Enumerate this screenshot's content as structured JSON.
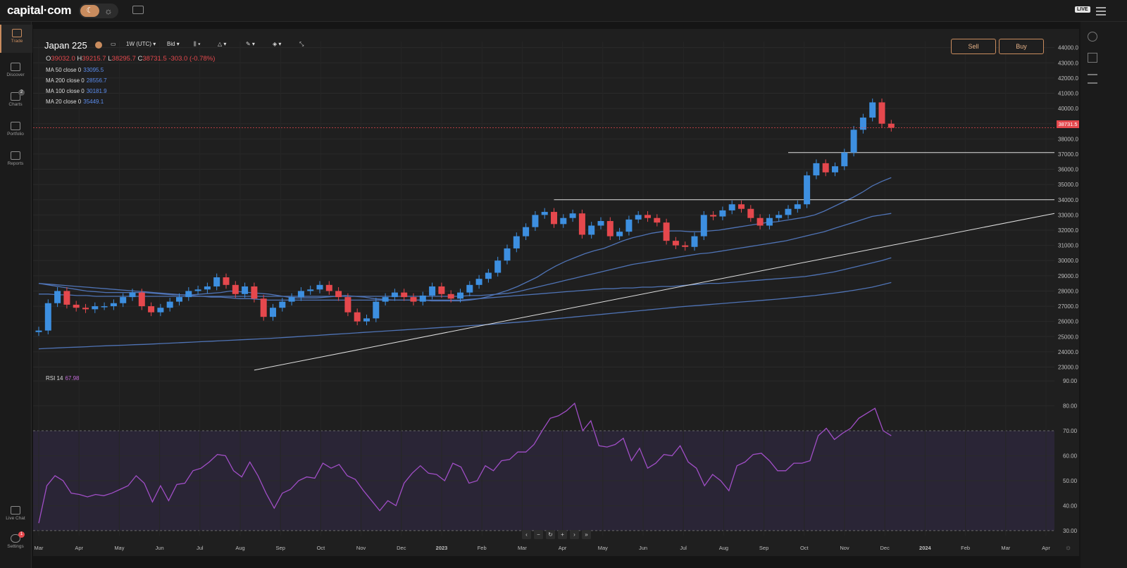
{
  "app": {
    "logo": "capital·com",
    "live_badge": "LIVE"
  },
  "sidebar": {
    "items": [
      {
        "label": "Trade",
        "icon": "trade-chart-icon",
        "active": true
      },
      {
        "label": "Discover",
        "icon": "discover-icon"
      },
      {
        "label": "Charts",
        "icon": "charts-icon",
        "badge": "2"
      },
      {
        "label": "Portfolio",
        "icon": "portfolio-icon"
      },
      {
        "label": "Reports",
        "icon": "reports-icon"
      }
    ],
    "bottom": [
      {
        "label": "Live Chat",
        "icon": "chat-icon"
      },
      {
        "label": "Settings",
        "icon": "settings-icon",
        "badge": "1"
      }
    ]
  },
  "toolbar": {
    "instrument": "Japan 225",
    "interval": "1W (UTC)",
    "price_type": "Bid",
    "sell_label": "Sell",
    "buy_label": "Buy"
  },
  "ohlc": {
    "o_label": "O",
    "o": "39032.0",
    "h_label": "H",
    "h": "39215.7",
    "l_label": "L",
    "l": "38295.7",
    "c_label": "C",
    "c": "38731.5",
    "change": "-303.0 (-0.78%)"
  },
  "indicators": [
    {
      "label": "MA 50 close 0",
      "value": "33095.5"
    },
    {
      "label": "MA 200 close 0",
      "value": "28556.7"
    },
    {
      "label": "MA 100 close 0",
      "value": "30181.9"
    },
    {
      "label": "MA 20 close 0",
      "value": "35449.1"
    }
  ],
  "rsi": {
    "label": "RSI 14",
    "value": "67.98"
  },
  "current_price_tag": "38731.5",
  "colors": {
    "up": "#3d8fe0",
    "down": "#e5484d",
    "ma": "#4f73b5",
    "rsi": "#a04ec6",
    "accent": "#c98c5e"
  },
  "chart_data": [
    {
      "type": "candlestick",
      "y_ticks": [
        "44000.0",
        "43000.0",
        "42000.0",
        "41000.0",
        "40000.0",
        "39000.0",
        "38000.0",
        "37000.0",
        "36000.0",
        "35000.0",
        "34000.0",
        "33000.0",
        "32000.0",
        "31000.0",
        "30000.0",
        "29000.0",
        "28000.0",
        "27000.0",
        "26000.0",
        "25000.0",
        "24000.0",
        "23000.0"
      ],
      "ylim": [
        22700,
        44400
      ],
      "x_ticks": [
        "Mar",
        "Apr",
        "May",
        "Jun",
        "Jul",
        "Aug",
        "Sep",
        "Oct",
        "Nov",
        "Dec",
        "2023",
        "Feb",
        "Mar",
        "Apr",
        "May",
        "Jun",
        "Jul",
        "Aug",
        "Sep",
        "Oct",
        "Nov",
        "Dec",
        "2024",
        "Feb",
        "Mar",
        "Apr"
      ],
      "close": [
        25400,
        27200,
        28000,
        27100,
        26900,
        26800,
        27000,
        27000,
        27200,
        27600,
        27900,
        27000,
        26600,
        26900,
        27300,
        27600,
        28000,
        28100,
        28300,
        28900,
        28400,
        27800,
        28300,
        27500,
        26300,
        26900,
        27300,
        27600,
        28000,
        28100,
        28400,
        28000,
        27600,
        26600,
        26000,
        26200,
        27300,
        27600,
        27900,
        27600,
        27300,
        27700,
        28300,
        27800,
        27500,
        27900,
        28400,
        28800,
        29200,
        30000,
        30800,
        31600,
        32200,
        33000,
        33200,
        32400,
        32800,
        33100,
        31700,
        32300,
        32600,
        31600,
        31900,
        32700,
        33000,
        32800,
        32500,
        31300,
        31000,
        30900,
        31600,
        33000,
        32900,
        33300,
        33700,
        33400,
        32800,
        32300,
        32800,
        33000,
        33400,
        33700,
        35600,
        36400,
        35800,
        36200,
        37100,
        38600,
        39400,
        40400,
        39000,
        38731.5
      ],
      "series": [
        {
          "name": "MA 20",
          "values": [
            28500,
            28400,
            28300,
            28200,
            28100,
            28000,
            27950,
            27900,
            27900,
            27900,
            27900,
            27900,
            27850,
            27800,
            27750,
            27750,
            27750,
            27800,
            27850,
            27900,
            28000,
            27950,
            27900,
            27850,
            27800,
            27700,
            27600,
            27550,
            27550,
            27550,
            27600,
            27650,
            27700,
            27650,
            27600,
            27500,
            27450,
            27400,
            27400,
            27400,
            27400,
            27350,
            27350,
            27350,
            27350,
            27400,
            27500,
            27650,
            27850,
            28050,
            28300,
            28600,
            28900,
            29300,
            29650,
            29950,
            30200,
            30450,
            30650,
            30800,
            31050,
            31300,
            31500,
            31650,
            31800,
            31900,
            31950,
            31950,
            31900,
            31900,
            31950,
            32000,
            32100,
            32200,
            32300,
            32400,
            32500,
            32550,
            32650,
            32750,
            32850,
            33000,
            33250,
            33550,
            33850,
            34150,
            34500,
            34900,
            35200,
            35450
          ]
        },
        {
          "name": "MA 50",
          "values": [
            27800,
            27800,
            27750,
            27750,
            27700,
            27700,
            27650,
            27650,
            27650,
            27650,
            27650,
            27650,
            27650,
            27650,
            27650,
            27650,
            27650,
            27650,
            27650,
            27650,
            27650,
            27650,
            27650,
            27650,
            27650,
            27650,
            27650,
            27650,
            27650,
            27650,
            27650,
            27650,
            27650,
            27650,
            27650,
            27650,
            27650,
            27650,
            27650,
            27650,
            27650,
            27650,
            27650,
            27650,
            27650,
            27700,
            27700,
            27750,
            27800,
            27850,
            27950,
            28100,
            28250,
            28400,
            28550,
            28700,
            28850,
            29000,
            29150,
            29300,
            29450,
            29600,
            29750,
            29850,
            29950,
            30050,
            30150,
            30250,
            30350,
            30450,
            30500,
            30600,
            30700,
            30800,
            30900,
            31000,
            31100,
            31200,
            31300,
            31450,
            31600,
            31750,
            31900,
            32100,
            32300,
            32500,
            32700,
            32900,
            33000,
            33100
          ]
        },
        {
          "name": "MA 100",
          "values": [
            28500,
            28450,
            28400,
            28350,
            28300,
            28250,
            28200,
            28150,
            28100,
            28050,
            28000,
            27950,
            27900,
            27850,
            27800,
            27750,
            27700,
            27650,
            27600,
            27600,
            27550,
            27500,
            27500,
            27450,
            27400,
            27400,
            27400,
            27400,
            27400,
            27400,
            27400,
            27400,
            27400,
            27400,
            27400,
            27400,
            27400,
            27400,
            27400,
            27400,
            27400,
            27400,
            27400,
            27400,
            27400,
            27450,
            27500,
            27550,
            27600,
            27650,
            27700,
            27750,
            27800,
            27850,
            27900,
            27950,
            28000,
            28050,
            28100,
            28150,
            28150,
            28200,
            28200,
            28250,
            28250,
            28300,
            28300,
            28350,
            28400,
            28450,
            28500,
            28500,
            28550,
            28600,
            28650,
            28700,
            28750,
            28800,
            28850,
            28900,
            28950,
            29050,
            29150,
            29250,
            29400,
            29550,
            29700,
            29850,
            30000,
            30180
          ]
        },
        {
          "name": "MA 200",
          "values": [
            24200,
            24230,
            24260,
            24290,
            24310,
            24340,
            24370,
            24400,
            24420,
            24440,
            24470,
            24490,
            24520,
            24550,
            24580,
            24610,
            24640,
            24670,
            24700,
            24730,
            24760,
            24790,
            24820,
            24850,
            24880,
            24920,
            24960,
            25000,
            25040,
            25080,
            25120,
            25160,
            25200,
            25240,
            25280,
            25320,
            25360,
            25400,
            25440,
            25480,
            25520,
            25560,
            25600,
            25640,
            25680,
            25720,
            25760,
            25800,
            25850,
            25900,
            25950,
            26000,
            26060,
            26120,
            26180,
            26240,
            26300,
            26360,
            26420,
            26480,
            26540,
            26600,
            26660,
            26720,
            26780,
            26840,
            26900,
            26960,
            27010,
            27060,
            27110,
            27160,
            27210,
            27260,
            27310,
            27360,
            27410,
            27460,
            27520,
            27580,
            27640,
            27700,
            27780,
            27860,
            27940,
            28040,
            28140,
            28250,
            28400,
            28556
          ]
        }
      ],
      "lines": [
        {
          "name": "trendline",
          "from": [
            "Jul 2022",
            22800
          ],
          "to": [
            "Apr 2024",
            33100
          ]
        },
        {
          "name": "resistance",
          "level": 34000
        },
        {
          "name": "support",
          "level": 37100
        }
      ]
    },
    {
      "type": "line",
      "name": "RSI 14",
      "y_ticks": [
        "90.00",
        "80.00",
        "70.00",
        "60.00",
        "50.00",
        "40.00",
        "30.00"
      ],
      "ylim": [
        28,
        92
      ],
      "values": [
        33,
        48,
        52,
        50,
        45,
        44.5,
        43.5,
        44.5,
        44,
        45,
        46.5,
        48,
        52,
        49,
        41.5,
        48,
        42,
        48.5,
        49,
        54,
        55,
        57.5,
        60.5,
        60,
        54,
        51.5,
        57.5,
        52,
        45,
        39,
        45,
        46.5,
        50,
        51.5,
        51,
        57,
        55,
        56.5,
        52,
        50.5,
        46,
        42,
        38,
        42,
        40,
        49,
        53,
        56,
        53,
        52.5,
        50,
        57,
        55.5,
        49,
        50,
        56,
        54,
        58,
        58.5,
        61.5,
        61.5,
        64.5,
        70,
        75,
        76,
        78,
        81,
        70,
        74,
        64,
        63.5,
        64.5,
        67,
        58,
        63,
        55,
        57,
        60.5,
        60,
        64,
        57.5,
        55,
        48,
        52.5,
        50,
        46,
        56,
        57.5,
        60.5,
        61,
        58,
        54,
        54,
        57,
        57,
        58,
        68,
        71,
        66.5,
        69,
        71,
        75,
        77,
        79,
        70,
        68
      ]
    }
  ]
}
